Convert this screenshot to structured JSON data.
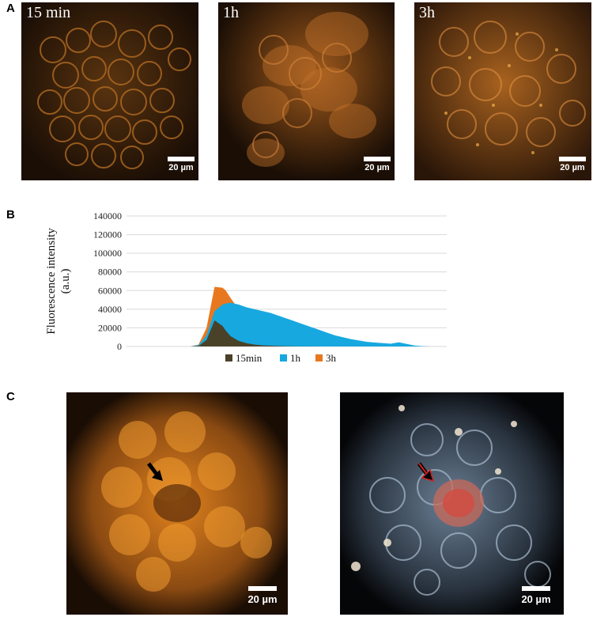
{
  "panels": {
    "a": "A",
    "b": "B",
    "c": "C"
  },
  "micrographs": [
    {
      "time_label": "15 min",
      "scale": "20 µm"
    },
    {
      "time_label": "1h",
      "scale": "20 µm"
    },
    {
      "time_label": "3h",
      "scale": "20 µm"
    }
  ],
  "panel_c": {
    "left_scale": "20 µm",
    "right_scale": "20 µm"
  },
  "colors": {
    "series_15min": "#4a4228",
    "series_1h": "#17a8e0",
    "series_3h": "#e8781f",
    "fluorescence_orange": "#e88a2a",
    "darkfield_blue": "#9fb4c8"
  },
  "chart_data": {
    "type": "area",
    "stacked": true,
    "ylabel": "Fluorescence intensity\n(a.u.)",
    "ylim": [
      0,
      140000
    ],
    "yticks": [
      0,
      20000,
      40000,
      60000,
      80000,
      100000,
      120000,
      140000
    ],
    "grid": true,
    "legend_position": "bottom",
    "x": [
      0,
      5,
      10,
      15,
      20,
      25,
      30,
      35,
      40,
      45,
      50,
      55,
      60,
      62,
      65,
      70,
      75,
      80,
      85,
      90,
      95,
      100,
      105,
      110,
      115,
      120,
      125,
      130,
      135,
      140,
      145,
      150,
      155,
      160,
      165,
      170,
      175,
      180,
      185,
      190,
      195,
      200
    ],
    "series": [
      {
        "name": "15min",
        "values": [
          0,
          0,
          0,
          0,
          0,
          0,
          0,
          0,
          0,
          500,
          7000,
          28000,
          22000,
          17000,
          11000,
          6000,
          3500,
          2000,
          1200,
          800,
          500,
          300,
          200,
          100,
          100,
          50,
          0,
          0,
          0,
          0,
          0,
          0,
          0,
          0,
          0,
          0,
          0,
          0,
          0,
          0,
          0,
          0
        ]
      },
      {
        "name": "1h",
        "values": [
          0,
          0,
          0,
          0,
          0,
          0,
          0,
          0,
          0,
          1500,
          12000,
          38000,
          45000,
          46000,
          47000,
          45000,
          42000,
          40000,
          38000,
          36000,
          33000,
          30000,
          27000,
          24000,
          21000,
          18000,
          15000,
          12000,
          10000,
          8000,
          6500,
          5000,
          4200,
          3600,
          3000,
          4500,
          2800,
          1000,
          300,
          0,
          0,
          0
        ]
      },
      {
        "name": "3h",
        "values": [
          0,
          0,
          0,
          0,
          0,
          0,
          0,
          0,
          0,
          2000,
          20000,
          64000,
          63000,
          60000,
          52000,
          40000,
          32000,
          26000,
          20000,
          15000,
          12000,
          10000,
          8000,
          6000,
          4500,
          3000,
          2000,
          1000,
          500,
          200,
          0,
          0,
          0,
          0,
          0,
          0,
          0,
          0,
          0,
          0,
          0,
          0
        ]
      }
    ]
  }
}
